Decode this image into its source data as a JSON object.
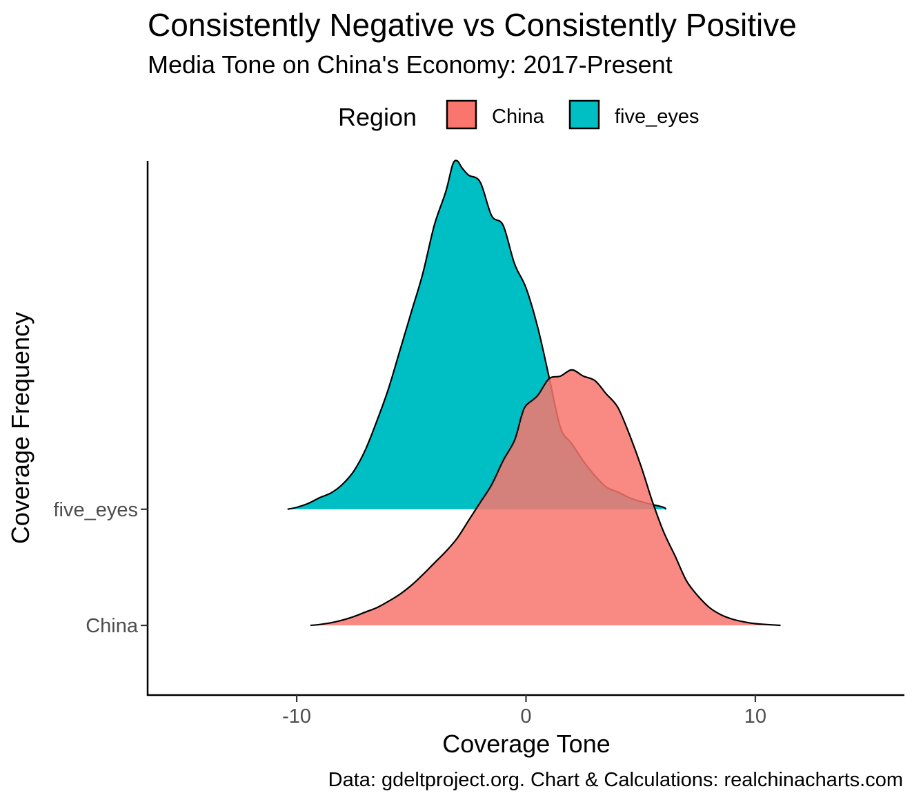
{
  "chart_data": {
    "type": "ridgeline",
    "title": "Consistently Negative vs Consistently Positive",
    "subtitle": "Media Tone on China's Economy: 2017-Present",
    "caption": "Data: gdeltproject.org. Chart & Calculations: realchinacharts.com",
    "xlabel": "Coverage Tone",
    "ylabel": "Coverage Frequency",
    "xlim": [
      -16.5,
      16.5
    ],
    "x_ticks": [
      -10,
      0,
      10
    ],
    "x_tick_labels": [
      "-10",
      "0",
      "10"
    ],
    "y_categories": [
      "China",
      "five_eyes"
    ],
    "legend": {
      "title": "Region",
      "position": "top",
      "entries": [
        {
          "label": "China",
          "color": "#F8766D"
        },
        {
          "label": "five_eyes",
          "color": "#00BFC4"
        }
      ]
    },
    "grid": false,
    "series": [
      {
        "name": "five_eyes",
        "color": "#00BFC4",
        "fill_opacity": 1.0,
        "density_height_units": 3.0,
        "points": [
          [
            -10.4,
            0.0
          ],
          [
            -10.0,
            0.02
          ],
          [
            -9.5,
            0.06
          ],
          [
            -9.0,
            0.12
          ],
          [
            -8.5,
            0.17
          ],
          [
            -8.0,
            0.26
          ],
          [
            -7.5,
            0.4
          ],
          [
            -7.0,
            0.62
          ],
          [
            -6.5,
            0.92
          ],
          [
            -6.0,
            1.25
          ],
          [
            -5.5,
            1.65
          ],
          [
            -5.0,
            2.05
          ],
          [
            -4.5,
            2.45
          ],
          [
            -4.0,
            2.95
          ],
          [
            -3.5,
            3.3
          ],
          [
            -3.2,
            3.58
          ],
          [
            -3.0,
            3.62
          ],
          [
            -2.8,
            3.55
          ],
          [
            -2.5,
            3.47
          ],
          [
            -2.0,
            3.4
          ],
          [
            -1.5,
            3.05
          ],
          [
            -1.0,
            2.95
          ],
          [
            -0.5,
            2.55
          ],
          [
            0.0,
            2.3
          ],
          [
            0.5,
            1.9
          ],
          [
            1.0,
            1.38
          ],
          [
            1.5,
            0.85
          ],
          [
            2.0,
            0.68
          ],
          [
            2.5,
            0.5
          ],
          [
            3.0,
            0.35
          ],
          [
            3.5,
            0.23
          ],
          [
            4.0,
            0.18
          ],
          [
            4.5,
            0.12
          ],
          [
            5.0,
            0.08
          ],
          [
            5.5,
            0.05
          ],
          [
            6.0,
            0.02
          ],
          [
            6.1,
            0.0
          ]
        ]
      },
      {
        "name": "China",
        "color": "#F8766D",
        "fill_opacity": 0.85,
        "density_height_units": 2.2,
        "points": [
          [
            -9.4,
            0.0
          ],
          [
            -9.0,
            0.01
          ],
          [
            -8.5,
            0.03
          ],
          [
            -8.0,
            0.06
          ],
          [
            -7.5,
            0.1
          ],
          [
            -7.0,
            0.15
          ],
          [
            -6.5,
            0.2
          ],
          [
            -6.0,
            0.27
          ],
          [
            -5.5,
            0.35
          ],
          [
            -5.0,
            0.45
          ],
          [
            -4.5,
            0.57
          ],
          [
            -4.0,
            0.7
          ],
          [
            -3.5,
            0.83
          ],
          [
            -3.0,
            0.98
          ],
          [
            -2.5,
            1.18
          ],
          [
            -2.0,
            1.38
          ],
          [
            -1.5,
            1.58
          ],
          [
            -1.0,
            1.85
          ],
          [
            -0.5,
            2.08
          ],
          [
            -0.2,
            2.35
          ],
          [
            0.0,
            2.47
          ],
          [
            0.5,
            2.58
          ],
          [
            1.0,
            2.77
          ],
          [
            1.5,
            2.8
          ],
          [
            2.0,
            2.87
          ],
          [
            2.5,
            2.8
          ],
          [
            3.0,
            2.75
          ],
          [
            3.5,
            2.6
          ],
          [
            4.0,
            2.45
          ],
          [
            4.5,
            2.15
          ],
          [
            5.0,
            1.8
          ],
          [
            5.5,
            1.4
          ],
          [
            6.0,
            1.05
          ],
          [
            6.5,
            0.78
          ],
          [
            7.0,
            0.5
          ],
          [
            7.5,
            0.33
          ],
          [
            8.0,
            0.2
          ],
          [
            8.5,
            0.12
          ],
          [
            9.0,
            0.07
          ],
          [
            9.5,
            0.04
          ],
          [
            10.0,
            0.02
          ],
          [
            10.5,
            0.01
          ],
          [
            11.1,
            0.0
          ]
        ]
      }
    ]
  }
}
